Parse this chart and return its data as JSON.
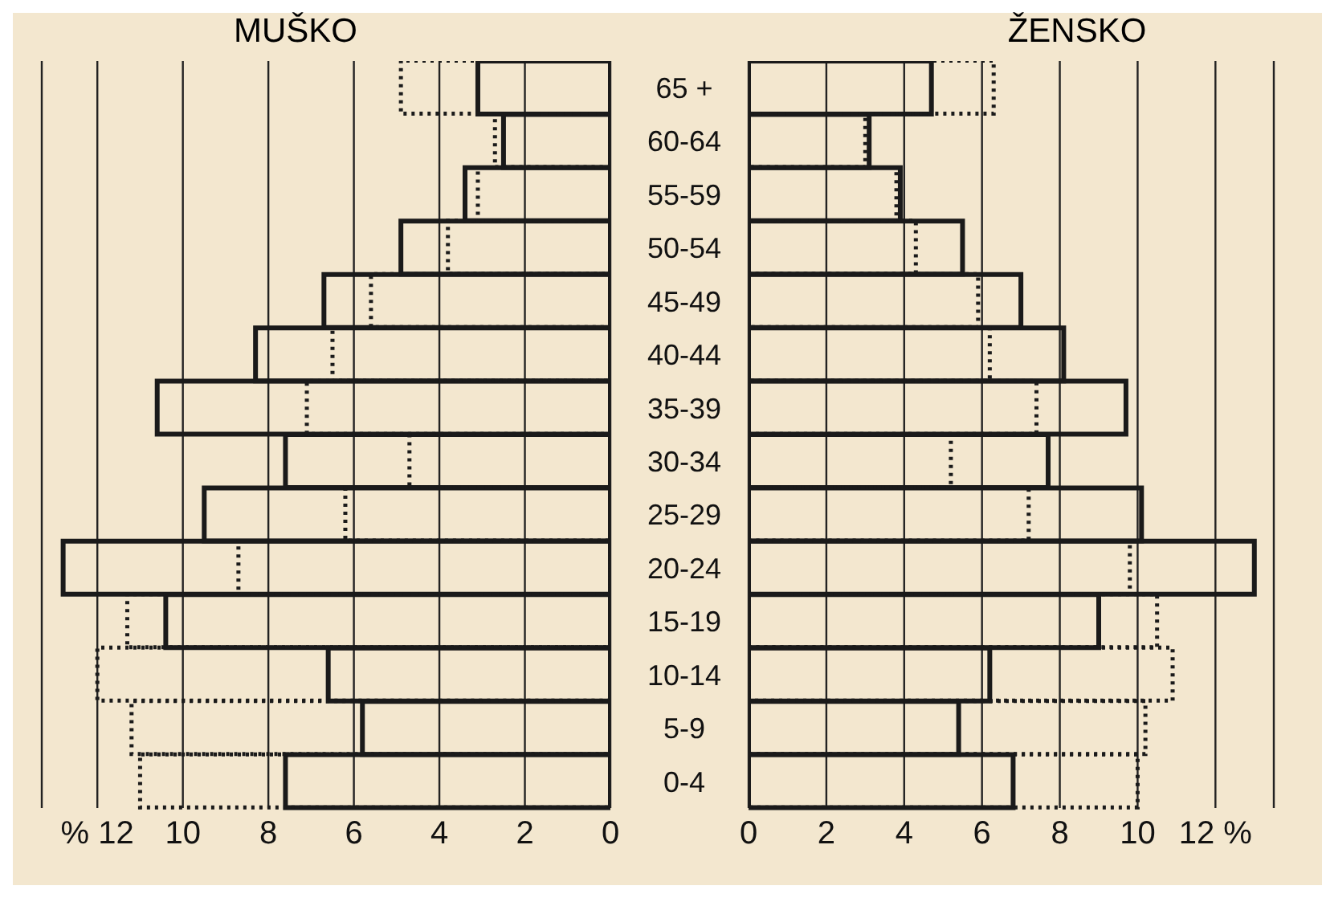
{
  "chart_data": [
    {
      "type": "bar",
      "title": "MUŠKO",
      "orientation": "horizontal",
      "categories": [
        "65 +",
        "60-64",
        "55-59",
        "50-54",
        "45-49",
        "40-44",
        "35-39",
        "30-34",
        "25-29",
        "20-24",
        "15-19",
        "10-14",
        "5-9",
        "0-4"
      ],
      "series": [
        {
          "color": "#1a1a1a",
          "line_style": "solid",
          "values": [
            3.1,
            2.5,
            3.4,
            4.9,
            6.7,
            8.3,
            10.6,
            7.6,
            9.5,
            12.8,
            10.4,
            6.6,
            5.8,
            7.6
          ]
        },
        {
          "color": "#1a1a1a",
          "line_style": "dotted",
          "values": [
            4.9,
            2.7,
            3.1,
            3.8,
            5.6,
            6.5,
            7.1,
            4.7,
            6.2,
            8.7,
            11.3,
            12.0,
            11.2,
            11.0
          ]
        }
      ],
      "xlim": [
        13.3,
        0
      ],
      "xticks": [
        {
          "value": 12,
          "label": "% 12"
        },
        10,
        8,
        6,
        4,
        2,
        0
      ],
      "grid": "x"
    },
    {
      "type": "bar",
      "title": "ŽENSKO",
      "orientation": "horizontal",
      "categories": [
        null,
        null,
        null,
        null,
        null,
        null,
        null,
        null,
        null,
        null,
        null,
        null,
        null,
        null
      ],
      "series": [
        {
          "color": "#1a1a1a",
          "line_style": "solid",
          "values": [
            4.7,
            3.1,
            3.9,
            5.5,
            7.0,
            8.1,
            9.7,
            7.7,
            10.1,
            13.0,
            9.0,
            6.2,
            5.4,
            6.8
          ]
        },
        {
          "color": "#1a1a1a",
          "line_style": "dotted",
          "values": [
            6.3,
            3.0,
            3.8,
            4.3,
            5.9,
            6.2,
            7.4,
            5.2,
            7.2,
            9.8,
            10.5,
            10.9,
            10.2,
            10.0
          ]
        }
      ],
      "xlim": [
        0,
        13.5
      ],
      "xticks": [
        0,
        2,
        4,
        6,
        8,
        10,
        {
          "value": 12,
          "label": "12 %"
        }
      ],
      "grid": "x",
      "tick_labels": "x"
    }
  ]
}
